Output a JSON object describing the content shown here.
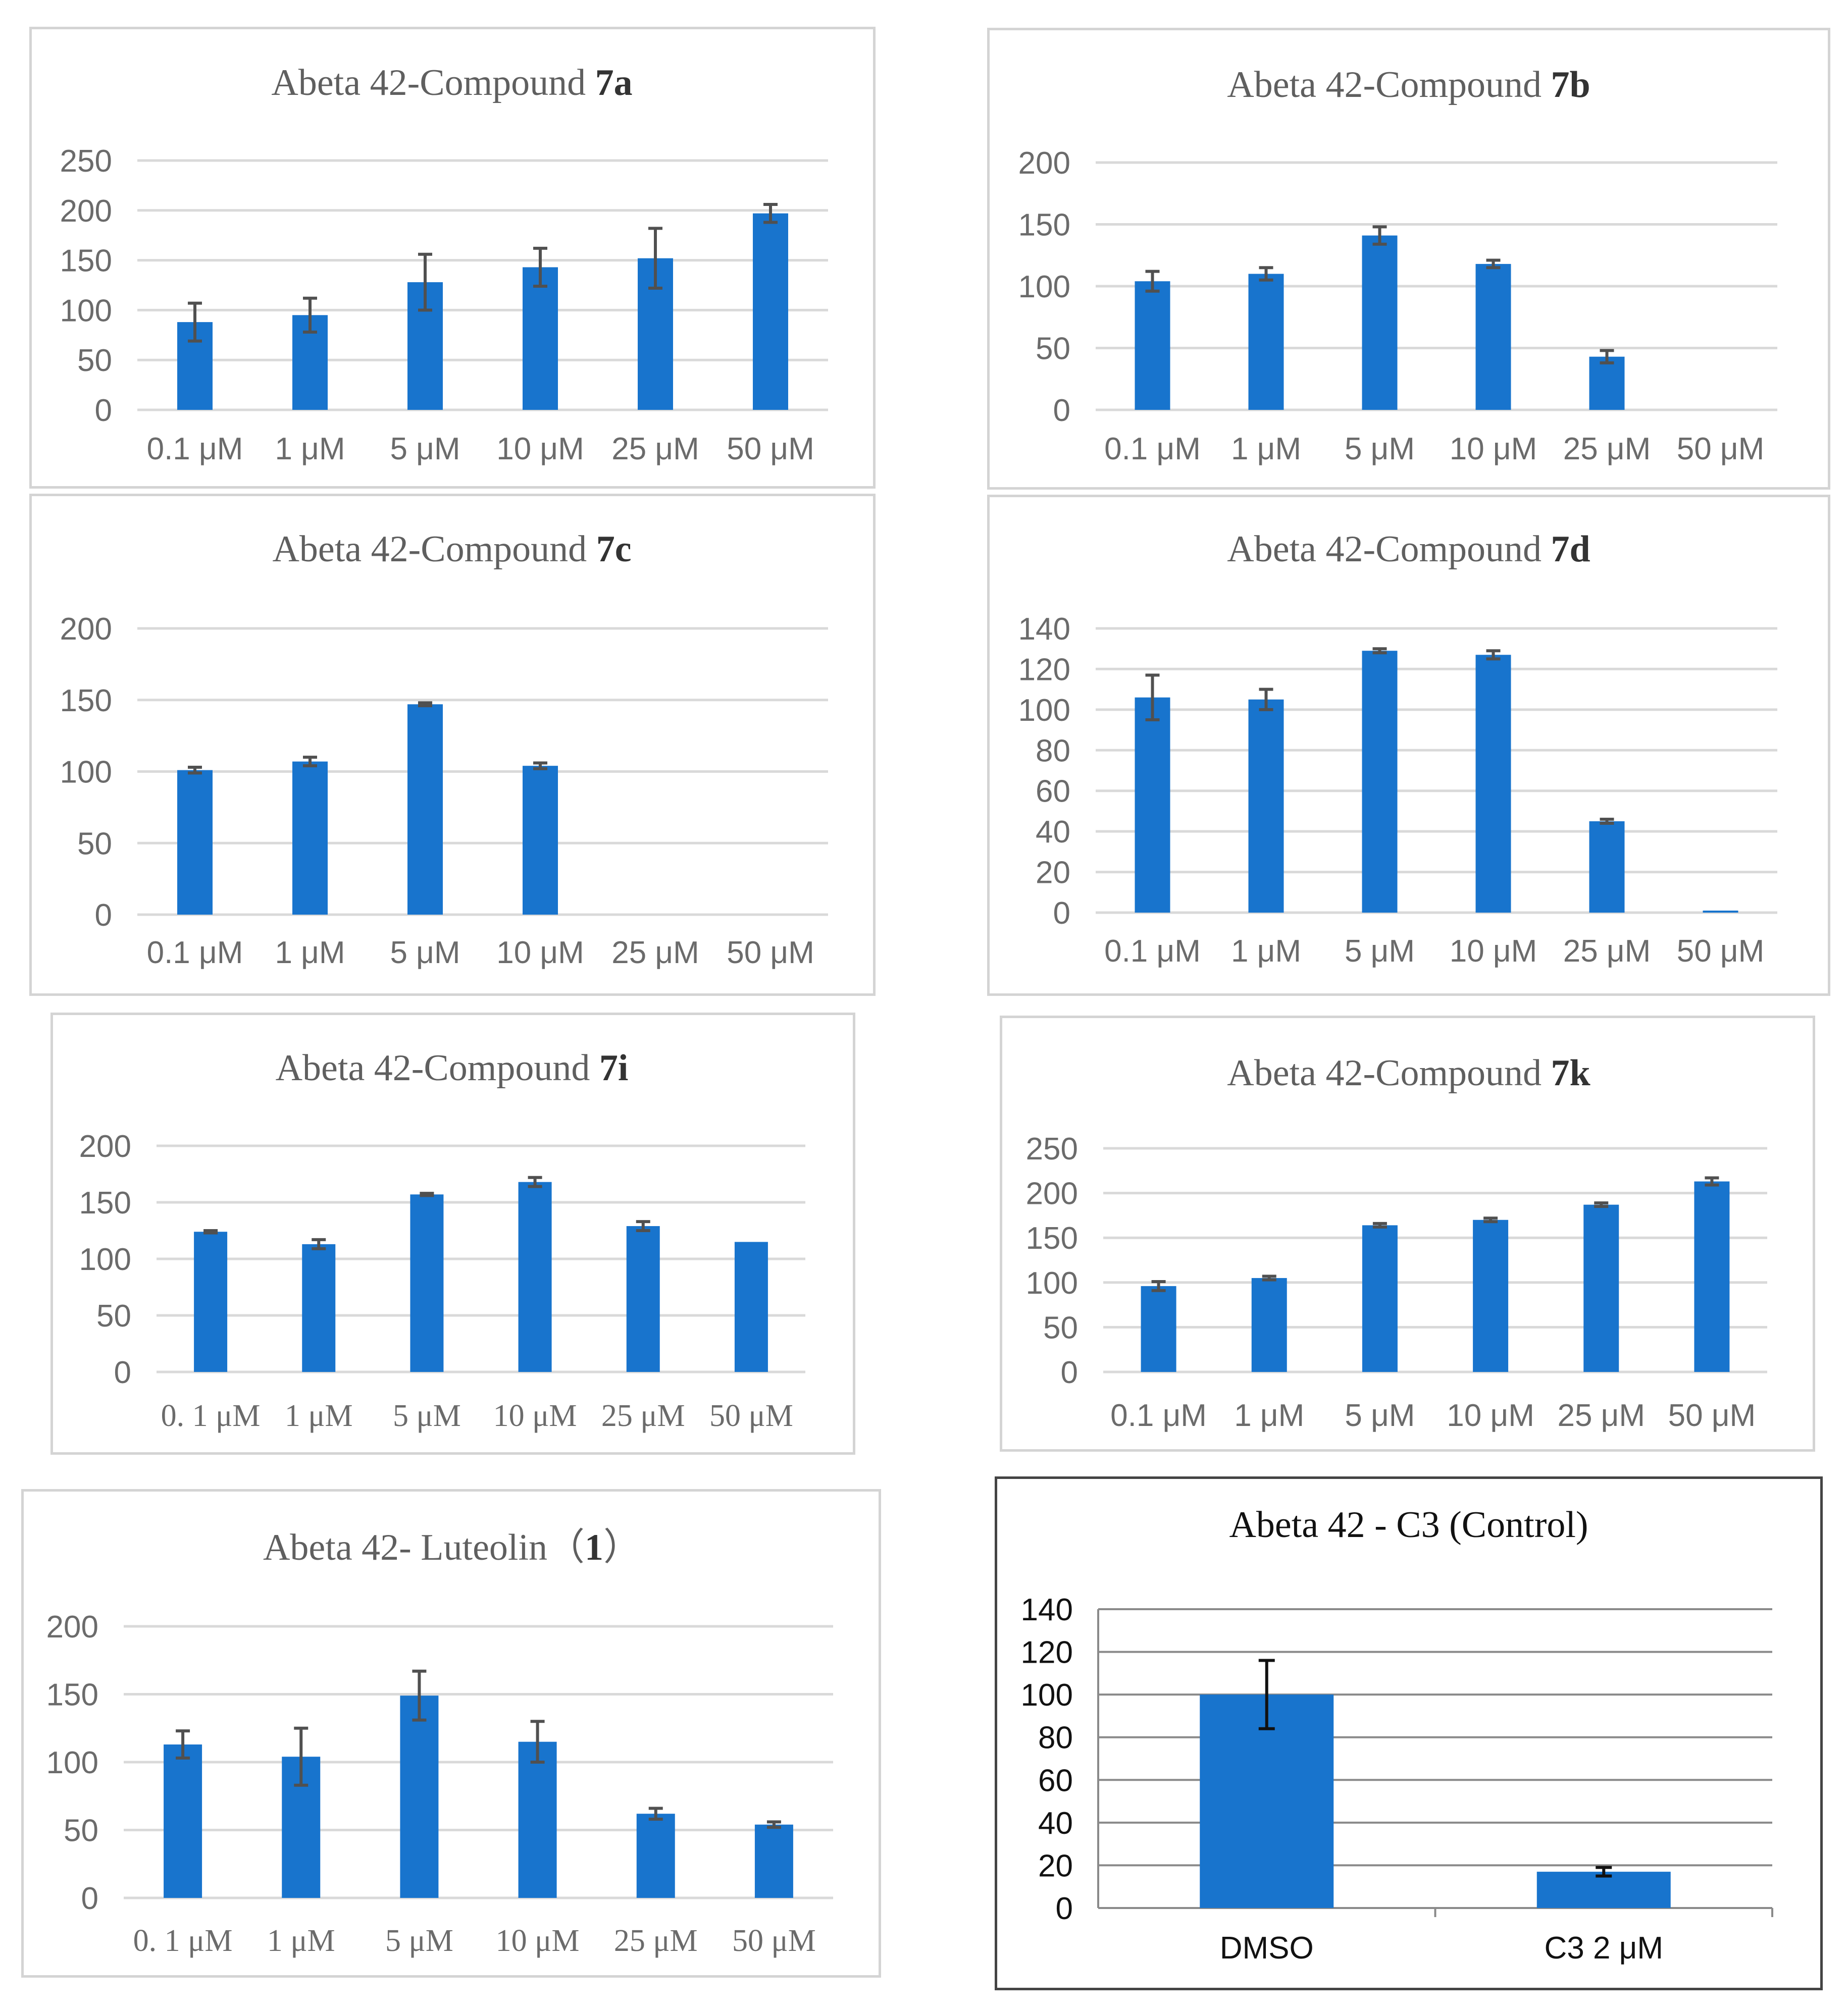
{
  "colors": {
    "bar": "#1874cd",
    "grid": "#d9d9d9",
    "text": "#6b6b6b",
    "border": "#d4d4d4"
  },
  "chart_data": [
    {
      "type": "bar",
      "title_main": "Abeta 42-Compound ",
      "title_bold": "7a",
      "categories": [
        "0.1 μM",
        "1 μM",
        "5 μM",
        "10 μM",
        "25 μM",
        "50 μM"
      ],
      "values": [
        88,
        95,
        128,
        143,
        152,
        197
      ],
      "errors": [
        19,
        17,
        28,
        19,
        30,
        9
      ],
      "ylim": [
        0,
        250
      ],
      "yticks": [
        "0",
        "50",
        "100",
        "150",
        "200",
        "250"
      ],
      "xlabel": "",
      "ylabel": "",
      "grid": true
    },
    {
      "type": "bar",
      "title_main": "Abeta 42-Compound ",
      "title_bold": "7b",
      "categories": [
        "0.1 μM",
        "1 μM",
        "5 μM",
        "10 μM",
        "25 μM",
        "50 μM"
      ],
      "values": [
        104,
        110,
        141,
        118,
        43,
        0
      ],
      "errors": [
        8,
        5,
        7,
        3,
        5,
        0
      ],
      "ylim": [
        0,
        200
      ],
      "yticks": [
        "0",
        "50",
        "100",
        "150",
        "200"
      ],
      "xlabel": "",
      "ylabel": "",
      "grid": true
    },
    {
      "type": "bar",
      "title_main": "Abeta 42-Compound ",
      "title_bold": "7c",
      "categories": [
        "0.1 μM",
        "1 μM",
        "5 μM",
        "10 μM",
        "25 μM",
        "50 μM"
      ],
      "values": [
        101,
        107,
        147,
        104,
        0,
        0
      ],
      "errors": [
        2,
        3,
        1,
        2,
        0,
        0
      ],
      "ylim": [
        0,
        200
      ],
      "yticks": [
        "0",
        "50",
        "100",
        "150",
        "200"
      ],
      "xlabel": "",
      "ylabel": "",
      "grid": true
    },
    {
      "type": "bar",
      "title_main": "Abeta 42-Compound ",
      "title_bold": "7d",
      "categories": [
        "0.1 μM",
        "1 μM",
        "5 μM",
        "10 μM",
        "25 μM",
        "50 μM"
      ],
      "values": [
        106,
        105,
        129,
        127,
        45,
        1
      ],
      "errors": [
        11,
        5,
        1,
        2,
        1,
        0
      ],
      "ylim": [
        0,
        140
      ],
      "yticks": [
        "0",
        "20",
        "40",
        "60",
        "80",
        "100",
        "120",
        "140"
      ],
      "xlabel": "",
      "ylabel": "",
      "grid": true
    },
    {
      "type": "bar",
      "title_main": "Abeta 42-Compound  ",
      "title_bold": "7i",
      "categories": [
        "0. 1 μM",
        "1 μM",
        "5 μM",
        "10 μM",
        "25 μM",
        "50 μM"
      ],
      "values": [
        124,
        113,
        157,
        168,
        129,
        115
      ],
      "errors": [
        1,
        4,
        1,
        4,
        4,
        0
      ],
      "ylim": [
        0,
        200
      ],
      "yticks": [
        "0",
        "50",
        "100",
        "150",
        "200"
      ],
      "xlabel": "",
      "ylabel": "",
      "grid": true
    },
    {
      "type": "bar",
      "title_main": "Abeta 42-Compound ",
      "title_bold": "7k",
      "categories": [
        "0.1 μM",
        "1 μM",
        "5 μM",
        "10 μM",
        "25 μM",
        "50 μM"
      ],
      "values": [
        96,
        105,
        164,
        170,
        187,
        213
      ],
      "errors": [
        5,
        2,
        2,
        2,
        2,
        4
      ],
      "ylim": [
        0,
        250
      ],
      "yticks": [
        "0",
        "50",
        "100",
        "150",
        "200",
        "250"
      ],
      "xlabel": "",
      "ylabel": "",
      "grid": true
    },
    {
      "type": "bar",
      "title_main": "Abeta 42- Luteolin（",
      "title_bold": "1",
      "title_tail": "）",
      "categories": [
        "0. 1 μM",
        "1 μM",
        "5 μM",
        "10 μM",
        "25 μM",
        "50 μM"
      ],
      "values": [
        113,
        104,
        149,
        115,
        62,
        54
      ],
      "errors": [
        10,
        21,
        18,
        15,
        4,
        2
      ],
      "ylim": [
        0,
        200
      ],
      "yticks": [
        "0",
        "50",
        "100",
        "150",
        "200"
      ],
      "xlabel": "",
      "ylabel": "",
      "grid": true
    },
    {
      "type": "bar",
      "title_main": "Abeta 42 - C3 (Control)",
      "title_bold": "",
      "categories": [
        "DMSO",
        "C3 2 μM"
      ],
      "values": [
        100,
        17
      ],
      "errors": [
        16,
        2
      ],
      "ylim": [
        0,
        140
      ],
      "yticks": [
        "0",
        "20",
        "40",
        "60",
        "80",
        "100",
        "120",
        "140"
      ],
      "xlabel": "",
      "ylabel": "",
      "grid": true
    }
  ]
}
